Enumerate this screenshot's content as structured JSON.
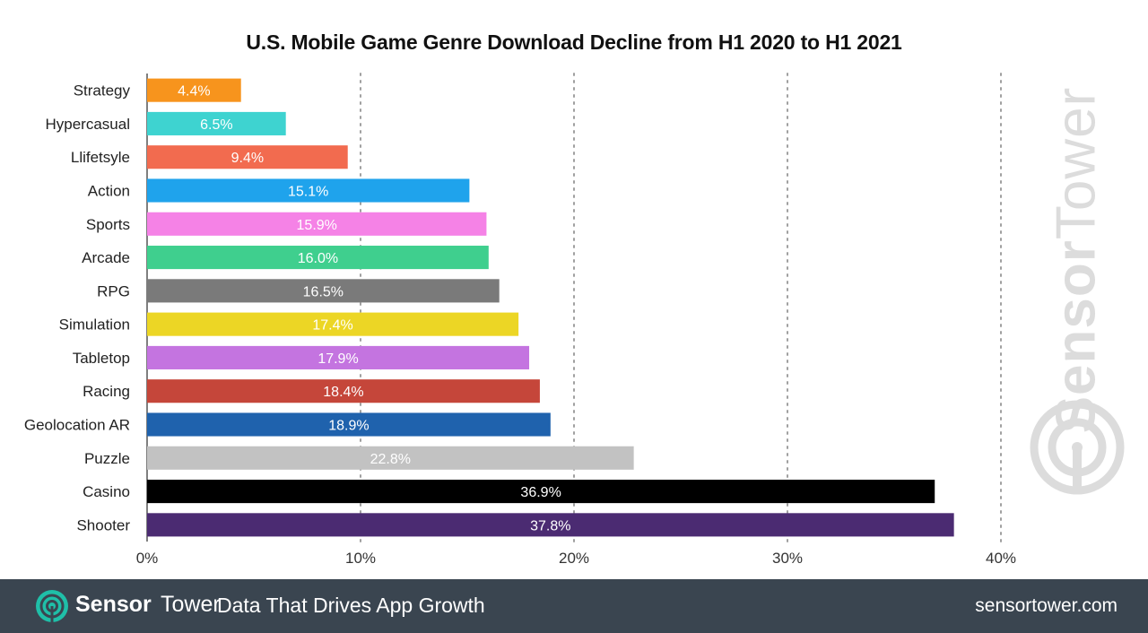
{
  "chart_data": {
    "type": "bar",
    "orientation": "horizontal",
    "title": "U.S. Mobile Game Genre Download Decline from H1 2020 to H1 2021",
    "categories": [
      "Strategy",
      "Hypercasual",
      "Llifetsyle",
      "Action",
      "Sports",
      "Arcade",
      "RPG",
      "Simulation",
      "Tabletop",
      "Racing",
      "Geolocation AR",
      "Puzzle",
      "Casino",
      "Shooter"
    ],
    "values": [
      4.4,
      6.5,
      9.4,
      15.1,
      15.9,
      16.0,
      16.5,
      17.4,
      17.9,
      18.4,
      18.9,
      22.8,
      36.9,
      37.8
    ],
    "value_labels": [
      "4.4%",
      "6.5%",
      "9.4%",
      "15.1%",
      "15.9%",
      "16.0%",
      "16.5%",
      "17.4%",
      "17.9%",
      "18.4%",
      "18.9%",
      "22.8%",
      "36.9%",
      "37.8%"
    ],
    "colors": [
      "#f7941d",
      "#3ed3d0",
      "#f26b4f",
      "#1fa3ec",
      "#f582e6",
      "#3fcf8e",
      "#7a7a7a",
      "#ecd625",
      "#c474e0",
      "#c5463a",
      "#1f62ad",
      "#c2c2c2",
      "#000000",
      "#4b2b72"
    ],
    "xlim": [
      0,
      40
    ],
    "xticks": [
      0,
      10,
      20,
      30,
      40
    ],
    "xtick_labels": [
      "0%",
      "10%",
      "20%",
      "30%",
      "40%"
    ],
    "grid": "vertical dotted",
    "xlabel": "",
    "ylabel": ""
  },
  "watermark": {
    "part1": "Sensor",
    "part2": "Tower"
  },
  "footer": {
    "brand_part1": "Sensor",
    "brand_part2": "Tower",
    "tagline": "Data That Drives App Growth",
    "website": "sensortower.com",
    "background": "#3a4550",
    "logo_color": "#1fbfa8"
  }
}
